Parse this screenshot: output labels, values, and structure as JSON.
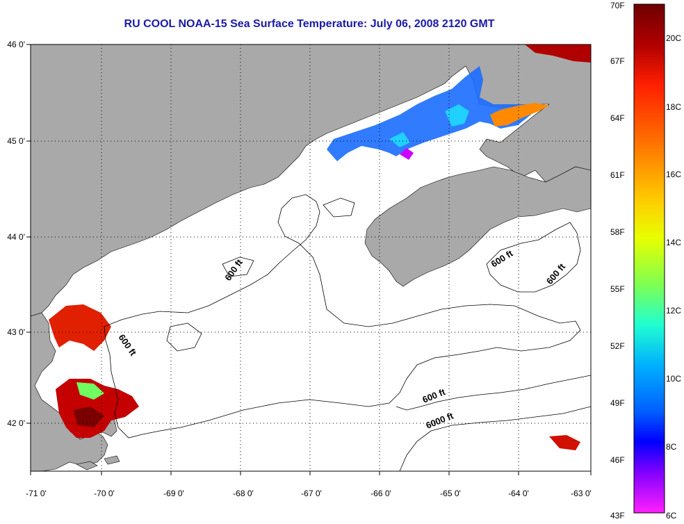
{
  "title": "RU COOL  NOAA-15  Sea Surface Temperature:  July 06, 2008 2120 GMT",
  "map": {
    "lon_range": [
      -71,
      -63
    ],
    "lat_range": [
      41.5,
      46
    ],
    "lon_ticks": [
      "-71 0'",
      "-70 0'",
      "-69 0'",
      "-68 0'",
      "-67 0'",
      "-66 0'",
      "-65 0'",
      "-64 0'",
      "-63 0'"
    ],
    "lat_ticks": [
      "46 0'",
      "45 0'",
      "44 0'",
      "43 0'",
      "42 0'"
    ],
    "contour_labels": [
      "600 ft",
      "600 ft",
      "600 ft",
      "600 ft",
      "600 ft",
      "6000 ft"
    ]
  },
  "colorbar": {
    "fahrenheit_labels": [
      "70F",
      "67F",
      "64F",
      "61F",
      "58F",
      "55F",
      "52F",
      "49F",
      "46F",
      "43F"
    ],
    "celsius_labels": [
      "20C",
      "18C",
      "16C",
      "14C",
      "12C",
      "10C",
      "8C",
      "6C"
    ],
    "colors": [
      "#7a0000",
      "#d40000",
      "#ff2a00",
      "#ff7a00",
      "#ffc800",
      "#eaff00",
      "#9cff3a",
      "#3cffb4",
      "#00e8ff",
      "#00a0ff",
      "#0050ff",
      "#0000ff",
      "#7a00ff",
      "#ff1aff"
    ]
  },
  "colors": {
    "land": "#a9a9a9",
    "ocean": "#ffffff",
    "grid": "#000000",
    "title": "#1a1aa8"
  }
}
